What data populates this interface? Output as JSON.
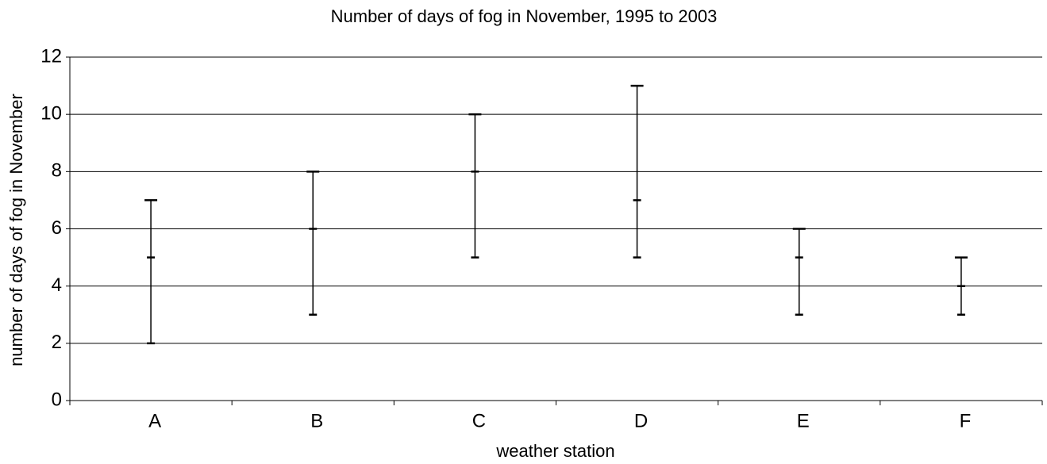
{
  "chart_data": {
    "type": "hilo",
    "title": "Number of days of fog in November, 1995 to 2003",
    "x_label": "weather station",
    "y_label": "number of days of fog in November",
    "categories": [
      "A",
      "B",
      "C",
      "D",
      "E",
      "F"
    ],
    "high": [
      7,
      8,
      10,
      11,
      6,
      5
    ],
    "middle": [
      5,
      6,
      8,
      7,
      5,
      4
    ],
    "low": [
      2,
      3,
      5,
      5,
      3,
      3
    ],
    "color": "#000000",
    "ylim": [
      0,
      12
    ],
    "yticks": [
      0,
      2,
      4,
      6,
      8,
      10,
      12
    ],
    "grid": true
  }
}
